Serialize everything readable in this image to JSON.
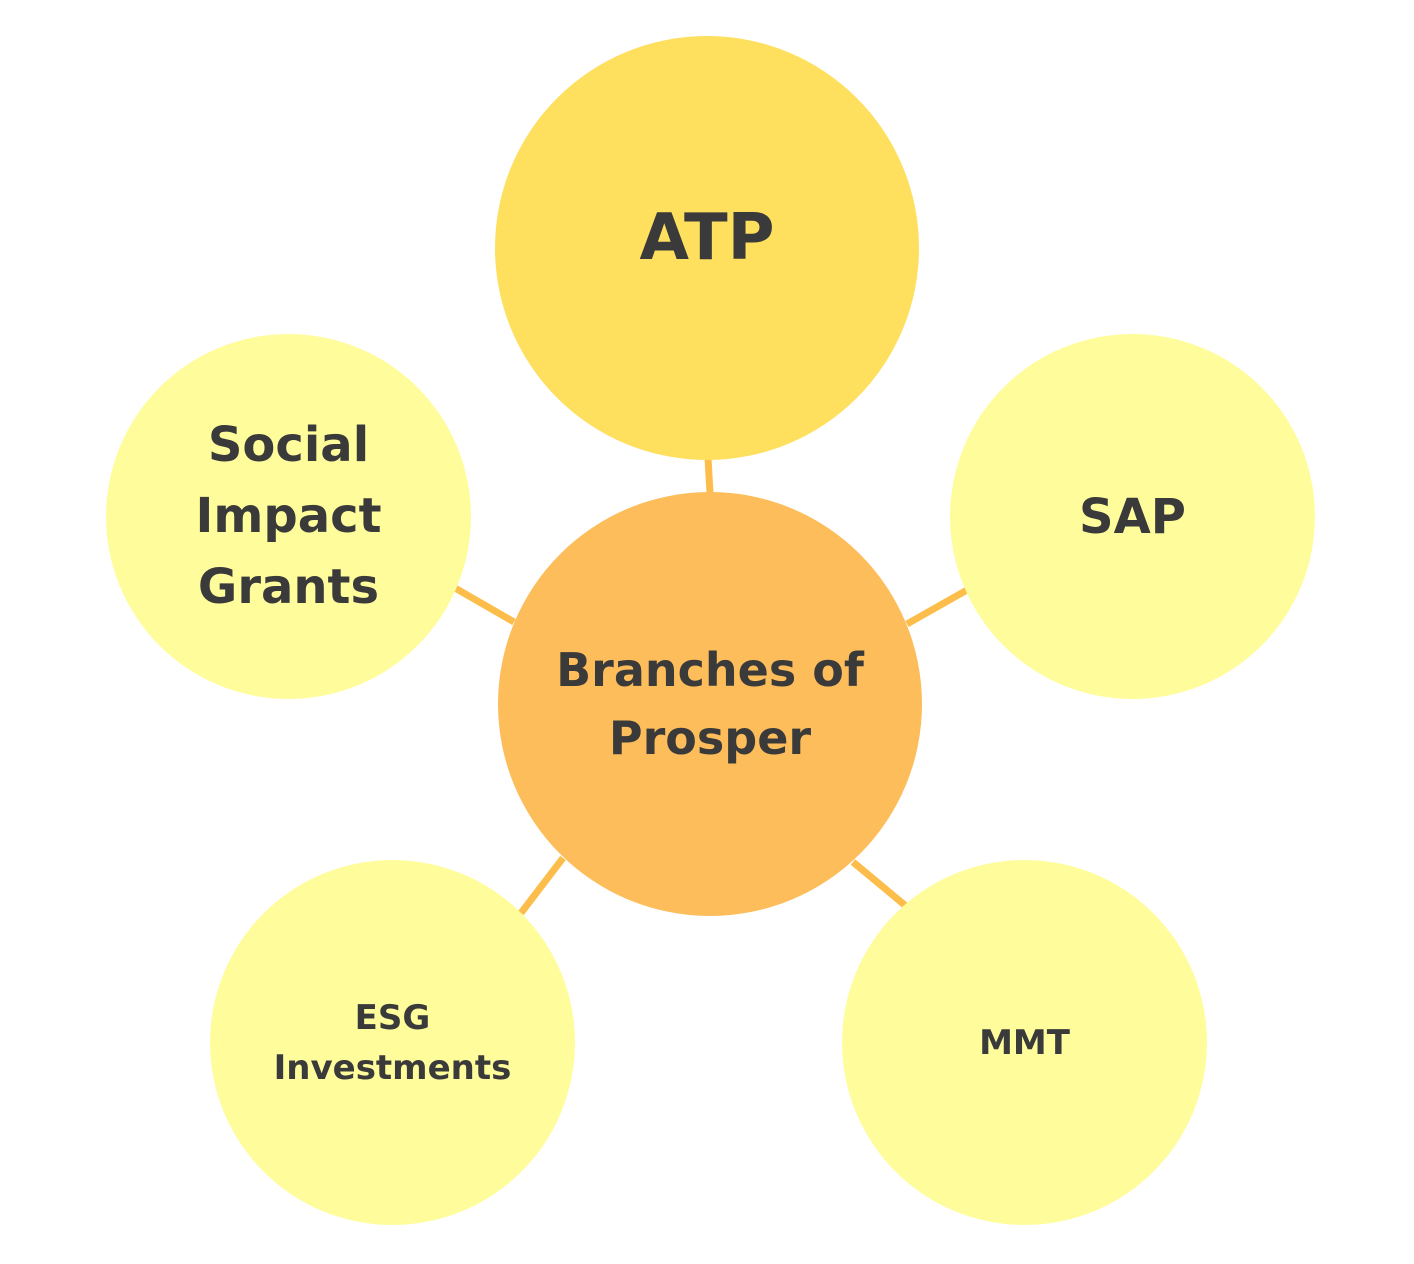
{
  "colors": {
    "center_fill": "#FDBD5A",
    "primary_fill": "#FEDF5E",
    "secondary_fill": "#FFFC9C",
    "connector": "#FDBD4A",
    "text": "#3A3A3A"
  },
  "center": {
    "label_line1": "Branches of",
    "label_line2": "Prosper"
  },
  "branches": {
    "atp": {
      "label": "ATP"
    },
    "social": {
      "label_line1": "Social",
      "label_line2": "Impact",
      "label_line3": "Grants"
    },
    "sap": {
      "label": "SAP"
    },
    "esg": {
      "label_line1": "ESG",
      "label_line2": "Investments"
    },
    "mmt": {
      "label": "MMT"
    }
  }
}
